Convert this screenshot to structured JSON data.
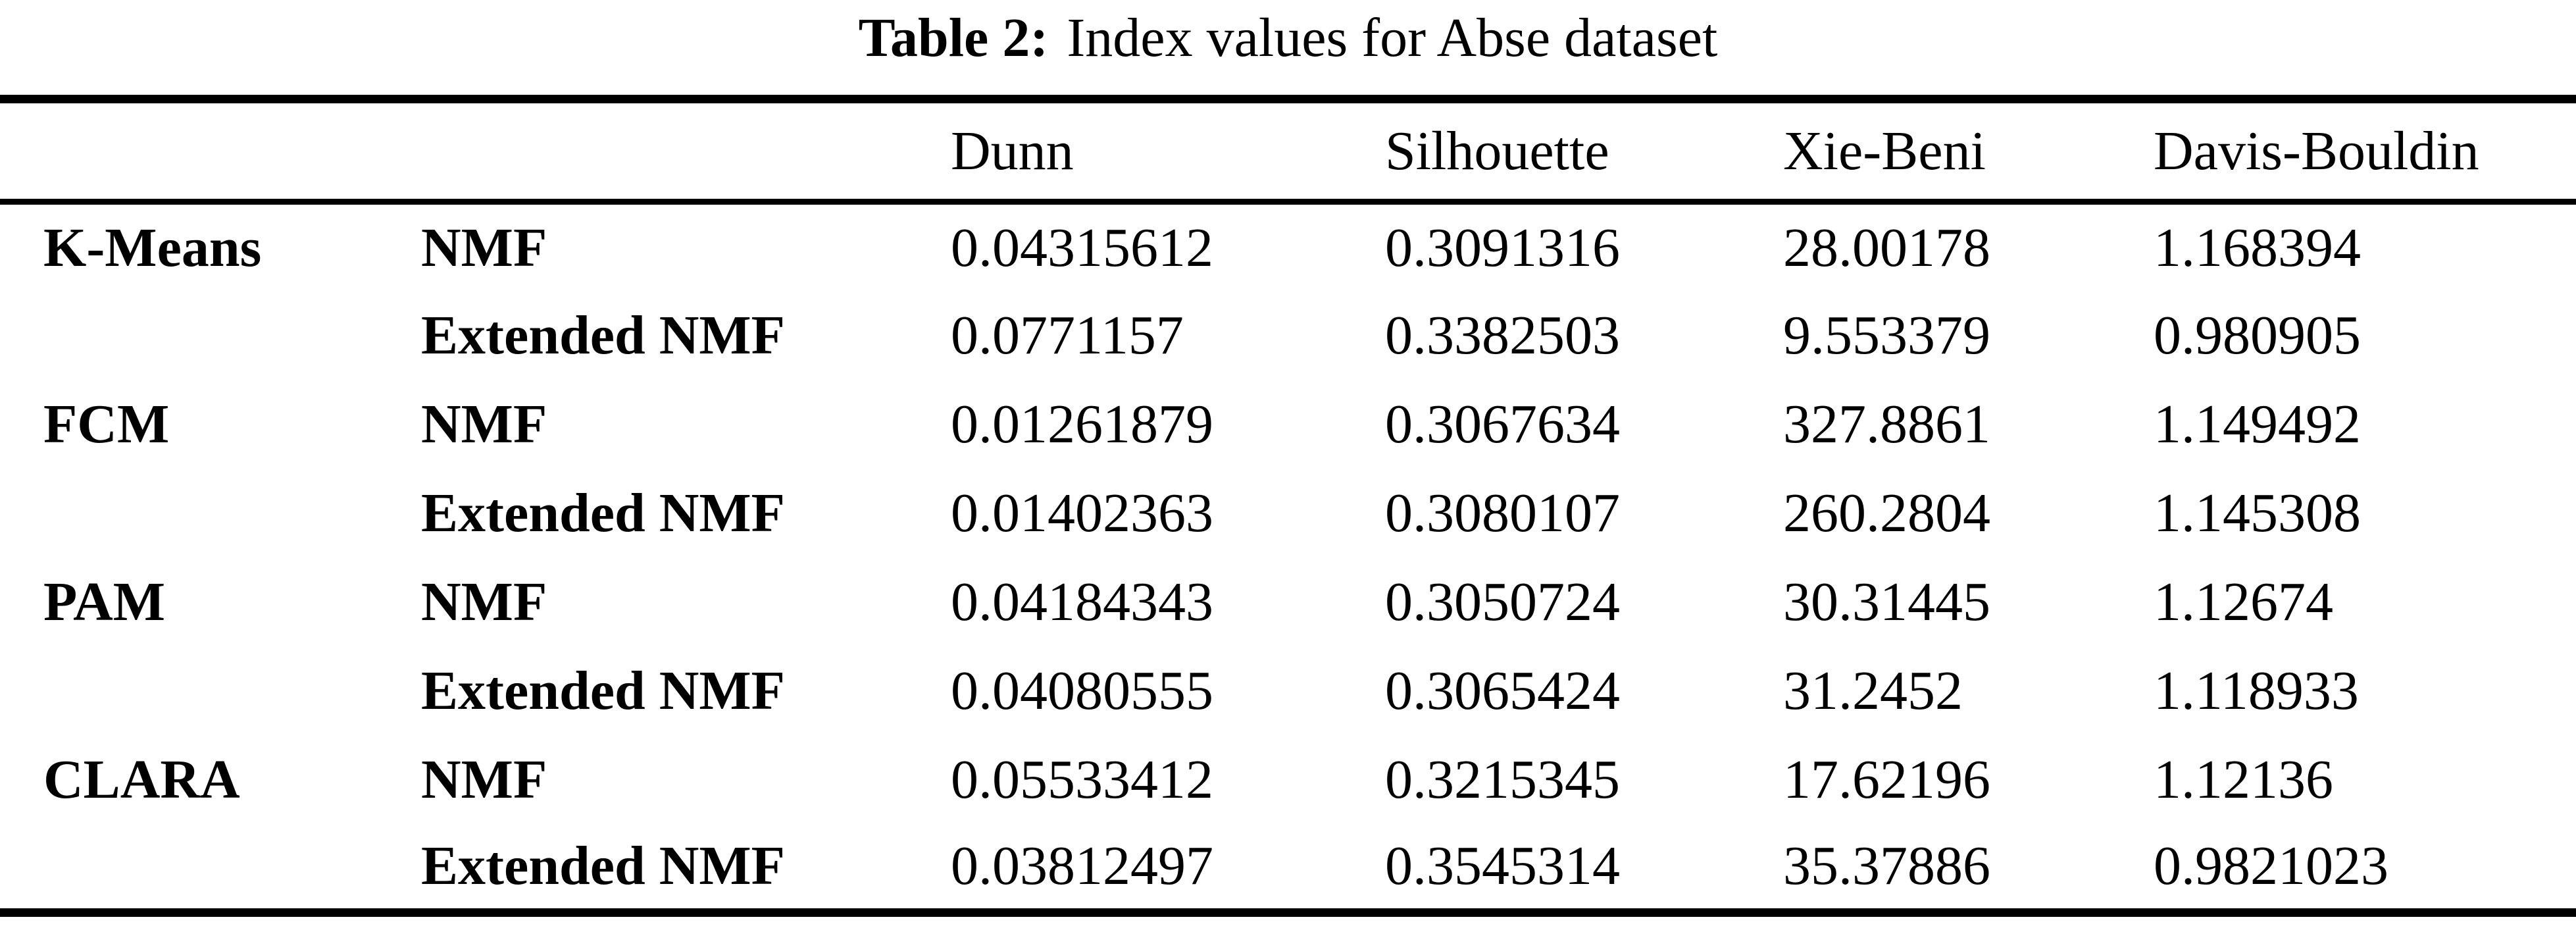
{
  "caption": {
    "label": "Table 2:",
    "text": "Index values for Abse dataset"
  },
  "columns": [
    "Dunn",
    "Silhouette",
    "Xie-Beni",
    "Davis-Bouldin"
  ],
  "rows": [
    {
      "algorithm": "K-Means",
      "method": "NMF",
      "dunn": "0.04315612",
      "silhouette": "0.3091316",
      "xie_beni": "28.00178",
      "davis_bouldin": "1.168394"
    },
    {
      "algorithm": "",
      "method": "Extended NMF",
      "dunn": "0.0771157",
      "silhouette": "0.3382503",
      "xie_beni": "9.553379",
      "davis_bouldin": "0.980905"
    },
    {
      "algorithm": "FCM",
      "method": "NMF",
      "dunn": "0.01261879",
      "silhouette": "0.3067634",
      "xie_beni": "327.8861",
      "davis_bouldin": "1.149492"
    },
    {
      "algorithm": "",
      "method": "Extended NMF",
      "dunn": "0.01402363",
      "silhouette": "0.3080107",
      "xie_beni": "260.2804",
      "davis_bouldin": "1.145308"
    },
    {
      "algorithm": "PAM",
      "method": "NMF",
      "dunn": "0.04184343",
      "silhouette": "0.3050724",
      "xie_beni": "30.31445",
      "davis_bouldin": "1.12674"
    },
    {
      "algorithm": "",
      "method": "Extended NMF",
      "dunn": "0.04080555",
      "silhouette": "0.3065424",
      "xie_beni": "31.2452",
      "davis_bouldin": "1.118933"
    },
    {
      "algorithm": "CLARA",
      "method": "NMF",
      "dunn": "0.05533412",
      "silhouette": "0.3215345",
      "xie_beni": "17.62196",
      "davis_bouldin": "1.12136"
    },
    {
      "algorithm": "",
      "method": "Extended NMF",
      "dunn": "0.03812497",
      "silhouette": "0.3545314",
      "xie_beni": "35.37886",
      "davis_bouldin": "0.9821023"
    }
  ]
}
